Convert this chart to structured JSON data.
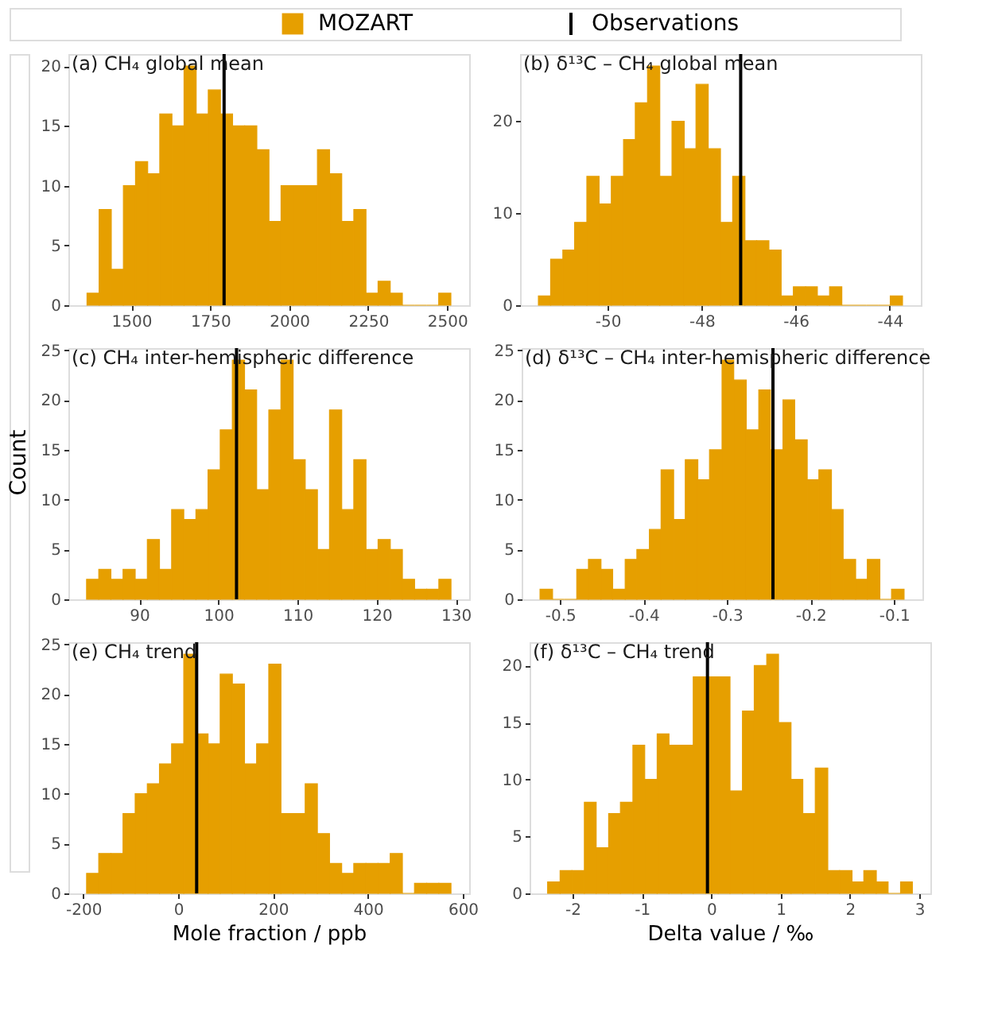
{
  "chart_data": [
    {
      "type": "histogram",
      "title": "(a) CH₄ global mean",
      "legend": "top",
      "bins": [
        1360,
        1398.4,
        1436.8,
        1475.2,
        1513.6,
        1552,
        1590.4,
        1628.8,
        1667.2,
        1705.6,
        1744,
        1782.4,
        1820.8,
        1859.2,
        1897.6,
        1936,
        1974.4,
        2012.8,
        2051.2,
        2089.6,
        2128,
        2166.4,
        2204.8,
        2243.2,
        2281.6,
        2320,
        2358.4,
        2396.8,
        2435.2,
        2473.6,
        2512
      ],
      "series": [
        {
          "name": "MOZART",
          "color": "#e69f00",
          "values": [
            1,
            8,
            3,
            10,
            12,
            11,
            16,
            15,
            20,
            16,
            18,
            16,
            15,
            15,
            13,
            7,
            10,
            10,
            10,
            13,
            11,
            7,
            8,
            1,
            2,
            1,
            0,
            0,
            0,
            1
          ]
        }
      ],
      "ref_lines": [
        {
          "axis": "x",
          "value": 1794,
          "label": "Observations",
          "color": "#000000"
        }
      ],
      "xlim": [
        1301,
        2570
      ],
      "xticks": [
        1500,
        1750,
        2000,
        2250,
        2500
      ],
      "ylim": [
        0,
        21
      ],
      "yticks": [
        0,
        5,
        10,
        15,
        20
      ]
    },
    {
      "type": "histogram",
      "title": "(b) δ¹³C – CH₄ global mean",
      "bins": [
        -51.47,
        -51.21,
        -50.95,
        -50.7,
        -50.44,
        -50.18,
        -49.92,
        -49.66,
        -49.41,
        -49.15,
        -48.89,
        -48.63,
        -48.37,
        -48.12,
        -47.86,
        -47.6,
        -47.34,
        -47.08,
        -46.83,
        -46.57,
        -46.31,
        -46.05,
        -45.79,
        -45.54,
        -45.28,
        -45.02,
        -44.76,
        -44.5,
        -44.25,
        -43.99,
        -43.73
      ],
      "series": [
        {
          "color": "#e69f00",
          "values": [
            1,
            5,
            6,
            9,
            14,
            11,
            14,
            18,
            22,
            26,
            14,
            20,
            17,
            24,
            17,
            9,
            14,
            7,
            7,
            6,
            1,
            2,
            2,
            1,
            2,
            0,
            0,
            0,
            0,
            1
          ]
        }
      ],
      "ref_lines": [
        {
          "axis": "x",
          "value": -47.17,
          "color": "#000000"
        }
      ],
      "xlim": [
        -51.86,
        -43.34
      ],
      "xticks": [
        -50,
        -48,
        -46,
        -44
      ],
      "ylim": [
        0,
        27.3
      ],
      "yticks": [
        0,
        10,
        20
      ]
    },
    {
      "type": "histogram",
      "title": "(c) CH₄ inter-hemispheric difference",
      "ylabel": "Count",
      "bins": [
        83.35,
        84.89,
        86.42,
        87.96,
        89.49,
        91.03,
        92.56,
        94.1,
        95.63,
        97.17,
        98.7,
        100.24,
        101.77,
        103.31,
        104.84,
        106.38,
        107.91,
        109.45,
        110.98,
        112.52,
        114.05,
        115.59,
        117.12,
        118.66,
        120.19,
        121.73,
        123.26,
        124.8,
        126.33,
        127.87,
        129.4
      ],
      "series": [
        {
          "color": "#e69f00",
          "values": [
            2,
            3,
            2,
            3,
            2,
            6,
            3,
            9,
            8,
            9,
            13,
            17,
            24,
            21,
            11,
            19,
            24,
            14,
            11,
            5,
            19,
            9,
            14,
            5,
            6,
            5,
            2,
            1,
            1,
            2
          ]
        }
      ],
      "ref_lines": [
        {
          "axis": "x",
          "value": 102.3,
          "color": "#000000"
        }
      ],
      "xlim": [
        81.05,
        131.7
      ],
      "xticks": [
        90,
        100,
        110,
        120,
        130
      ],
      "ylim": [
        0,
        25.2
      ],
      "yticks": [
        0,
        5,
        10,
        15,
        20,
        25
      ]
    },
    {
      "type": "histogram",
      "title": "(d) δ¹³C – CH₄ inter-hemispheric difference",
      "bins": [
        -0.524,
        -0.509,
        -0.495,
        -0.48,
        -0.466,
        -0.451,
        -0.437,
        -0.422,
        -0.408,
        -0.393,
        -0.379,
        -0.364,
        -0.35,
        -0.335,
        -0.321,
        -0.306,
        -0.292,
        -0.277,
        -0.262,
        -0.248,
        -0.233,
        -0.219,
        -0.204,
        -0.19,
        -0.175,
        -0.161,
        -0.146,
        -0.132,
        -0.117,
        -0.103,
        -0.088
      ],
      "series": [
        {
          "color": "#e69f00",
          "values": [
            1,
            0,
            0,
            3,
            4,
            3,
            1,
            4,
            5,
            7,
            13,
            8,
            14,
            12,
            15,
            24,
            22,
            17,
            21,
            15,
            20,
            16,
            12,
            13,
            9,
            4,
            2,
            4,
            0,
            1
          ]
        }
      ],
      "ref_lines": [
        {
          "axis": "x",
          "value": -0.245,
          "color": "#000000"
        }
      ],
      "xlim": [
        -0.546,
        -0.066
      ],
      "xticks": [
        -0.5,
        -0.4,
        -0.3,
        -0.2,
        -0.1
      ],
      "ylim": [
        0,
        25.2
      ],
      "yticks": [
        0,
        5,
        10,
        15,
        20,
        25
      ]
    },
    {
      "type": "histogram",
      "title": "(e) CH₄ trend",
      "xlabel": "Mole fraction / ppb",
      "bins": [
        -193,
        -167.4,
        -141.8,
        -116.2,
        -90.6,
        -65,
        -39.4,
        -13.8,
        11.8,
        37.4,
        63,
        88.6,
        114.2,
        139.8,
        165.4,
        191,
        216.6,
        242.2,
        267.8,
        293.4,
        319,
        344.6,
        370.2,
        395.8,
        421.4,
        447,
        472.6,
        498.2,
        523.8,
        549.4,
        575
      ],
      "series": [
        {
          "color": "#e69f00",
          "values": [
            2,
            4,
            4,
            8,
            10,
            11,
            13,
            15,
            24,
            16,
            15,
            22,
            21,
            13,
            15,
            23,
            8,
            8,
            11,
            6,
            3,
            2,
            3,
            3,
            3,
            4,
            0,
            1,
            1,
            1
          ]
        }
      ],
      "ref_lines": [
        {
          "axis": "x",
          "value": 39,
          "color": "#000000"
        }
      ],
      "xlim": [
        -231.4,
        613.4
      ],
      "xticks": [
        -200,
        0,
        200,
        400,
        600
      ],
      "ylim": [
        0,
        25.2
      ],
      "yticks": [
        0,
        5,
        10,
        15,
        20,
        25
      ]
    },
    {
      "type": "histogram",
      "title": "(f) δ¹³C – CH₄ trend",
      "xlabel": "Delta value / ‰",
      "bins": [
        -2.36,
        -2.18,
        -2.01,
        -1.83,
        -1.66,
        -1.48,
        -1.31,
        -1.13,
        -0.96,
        -0.78,
        -0.61,
        -0.43,
        -0.26,
        -0.08,
        0.1,
        0.27,
        0.45,
        0.62,
        0.8,
        0.97,
        1.15,
        1.32,
        1.5,
        1.68,
        1.85,
        2.03,
        2.2,
        2.38,
        2.55,
        2.73,
        2.9
      ],
      "series": [
        {
          "color": "#e69f00",
          "values": [
            1,
            2,
            2,
            8,
            4,
            7,
            8,
            13,
            10,
            14,
            13,
            13,
            19,
            19,
            19,
            9,
            16,
            20,
            21,
            15,
            10,
            7,
            11,
            2,
            2,
            1,
            2,
            1,
            0,
            1
          ]
        }
      ],
      "ref_lines": [
        {
          "axis": "x",
          "value": -0.055,
          "color": "#000000"
        }
      ],
      "xlim": [
        -2.62,
        3.16
      ],
      "xticks": [
        -2,
        -1,
        0,
        1,
        2,
        3
      ],
      "ylim": [
        0,
        22.05
      ],
      "yticks": [
        0,
        5,
        10,
        15,
        20
      ]
    }
  ]
}
